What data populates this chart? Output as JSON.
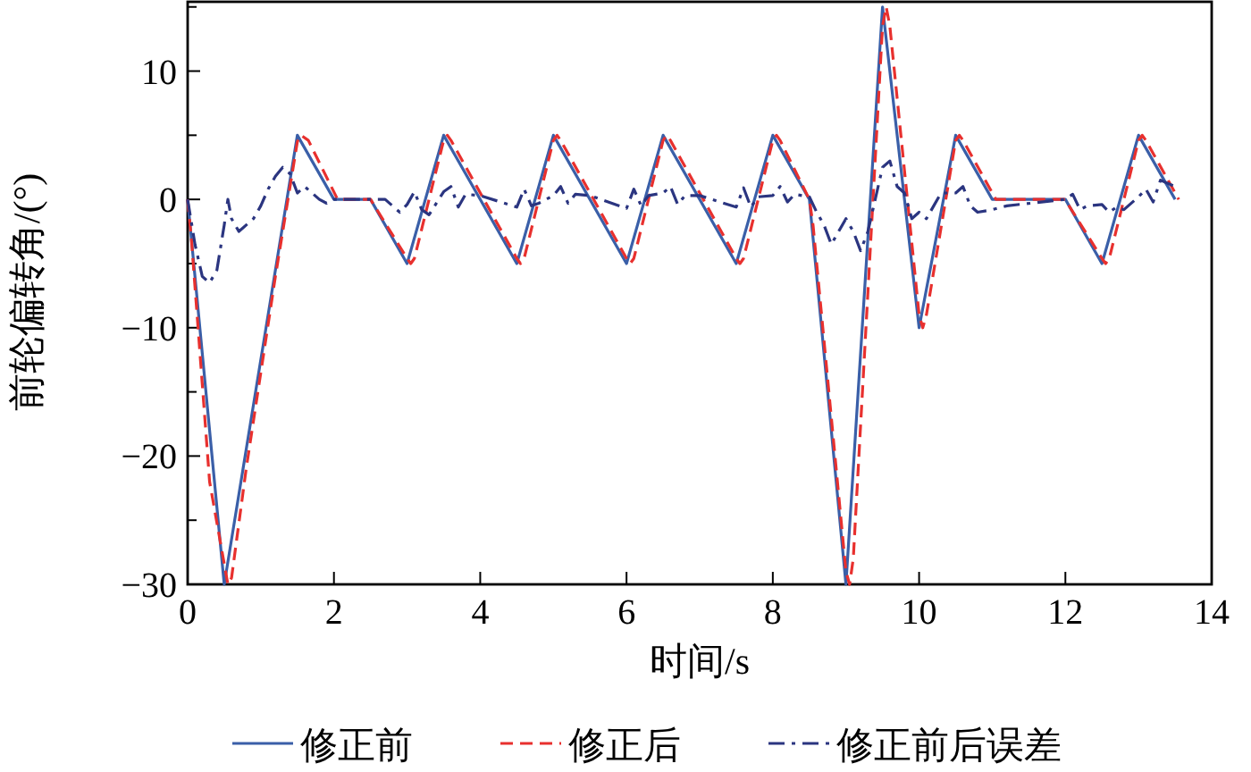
{
  "chart_data": {
    "type": "line",
    "xlabel": "时间/s",
    "ylabel": "前轮偏转角/(°)",
    "xlim": [
      0,
      14
    ],
    "xticks": [
      0,
      2,
      4,
      6,
      8,
      10,
      12,
      14
    ],
    "ylim": [
      -30,
      15.4
    ],
    "yticks": [
      {
        "value": -30,
        "label": "−30"
      },
      {
        "value": -25,
        "label": null
      },
      {
        "value": -20,
        "label": "−20"
      },
      {
        "value": -15,
        "label": null
      },
      {
        "value": -10,
        "label": "−10"
      },
      {
        "value": -5,
        "label": null
      },
      {
        "value": 0,
        "label": "0"
      },
      {
        "value": 5,
        "label": null
      },
      {
        "value": 10,
        "label": "10"
      },
      {
        "value": 15,
        "label": null
      }
    ],
    "grid": false,
    "legend": "bottom",
    "series": [
      {
        "name": "修正前",
        "color": "#3a5fa8",
        "line_style": "solid",
        "x": [
          0,
          0.5,
          1.5,
          2,
          2.5,
          3,
          3.5,
          4.5,
          5,
          6,
          6.5,
          7.5,
          8,
          8.5,
          9,
          9.5,
          10,
          10.5,
          11,
          12,
          12.5,
          13,
          13.5
        ],
        "values": [
          0,
          -30,
          5,
          0,
          0,
          -5,
          5,
          -5,
          5,
          -5,
          5,
          -5,
          5,
          0,
          -30,
          15,
          -10,
          5,
          0,
          0,
          -5,
          5,
          0
        ]
      },
      {
        "name": "修正后",
        "color": "#e8302e",
        "line_style": "dashed",
        "x": [
          0,
          0.05,
          0.3,
          0.55,
          0.6,
          0.8,
          1.2,
          1.5,
          1.55,
          1.65,
          2.05,
          2.5,
          3.0,
          3.05,
          3.1,
          3.5,
          3.55,
          3.6,
          4.5,
          4.55,
          4.6,
          5.0,
          5.05,
          5.1,
          6.0,
          6.05,
          6.1,
          6.5,
          6.55,
          6.6,
          7.5,
          7.55,
          7.6,
          8.0,
          8.05,
          8.1,
          8.5,
          8.55,
          9.0,
          9.05,
          9.1,
          9.5,
          9.55,
          9.6,
          10.0,
          10.05,
          10.1,
          10.5,
          10.55,
          10.6,
          11.05,
          12.0,
          12.05,
          12.5,
          12.55,
          12.6,
          13.0,
          13.05,
          13.1,
          13.55
        ],
        "values": [
          0,
          -3,
          -22,
          -30,
          -29.5,
          -21,
          -6,
          4.5,
          5,
          4.6,
          0,
          0,
          -4.6,
          -5,
          -4.6,
          4.6,
          5,
          4.6,
          -4.6,
          -5,
          -4.6,
          4.6,
          5,
          4.6,
          -4.6,
          -5,
          -4.6,
          4.6,
          5,
          4.6,
          -4.6,
          -5,
          -4.6,
          4.6,
          5,
          4.6,
          0,
          -2,
          -29,
          -30,
          -28,
          13.5,
          15,
          13.5,
          -9,
          -10,
          -9,
          4.6,
          5,
          4.6,
          0,
          0,
          -0.5,
          -4.6,
          -5,
          -4.6,
          4.6,
          5,
          4.6,
          0
        ]
      },
      {
        "name": "修正前后误差",
        "color": "#2b3580",
        "line_style": "dashdot",
        "x": [
          0,
          0.1,
          0.2,
          0.3,
          0.4,
          0.5,
          0.55,
          0.6,
          0.7,
          0.8,
          0.9,
          1.0,
          1.1,
          1.2,
          1.3,
          1.4,
          1.5,
          1.6,
          1.7,
          1.8,
          1.9,
          2.0,
          2.5,
          2.7,
          2.8,
          2.9,
          3.0,
          3.1,
          3.2,
          3.3,
          3.5,
          3.6,
          3.7,
          3.8,
          4.0,
          4.5,
          4.6,
          4.7,
          4.8,
          5.0,
          5.1,
          5.2,
          5.3,
          5.5,
          6.0,
          6.1,
          6.2,
          6.3,
          6.5,
          6.6,
          6.7,
          6.8,
          7.0,
          7.5,
          7.6,
          7.7,
          7.8,
          8.0,
          8.1,
          8.2,
          8.3,
          8.5,
          8.6,
          8.7,
          8.8,
          9.0,
          9.1,
          9.2,
          9.3,
          9.4,
          9.5,
          9.6,
          9.7,
          9.8,
          9.9,
          10.0,
          10.1,
          10.2,
          10.3,
          10.5,
          10.6,
          10.7,
          10.8,
          11.0,
          11.2,
          12.0,
          12.1,
          12.2,
          12.3,
          12.5,
          12.6,
          12.7,
          12.8,
          13.0,
          13.1,
          13.2,
          13.3,
          13.5
        ],
        "values": [
          0,
          -3.5,
          -6,
          -6.5,
          -5.5,
          -2,
          0,
          -1.5,
          -2.5,
          -2,
          -1.5,
          -0.5,
          0.8,
          1.8,
          2.5,
          2,
          0.5,
          1,
          0.5,
          0,
          -0.3,
          0,
          0,
          0,
          -0.5,
          -1,
          -0.4,
          0.6,
          -0.8,
          -1.2,
          0.6,
          1,
          -0.6,
          0.4,
          0.3,
          -0.6,
          0.8,
          -0.5,
          -0.3,
          0.3,
          1,
          -0.3,
          0.4,
          0.3,
          -0.7,
          0.8,
          -0.5,
          0.3,
          0.5,
          1,
          -0.4,
          0.3,
          0.3,
          -0.6,
          0.9,
          -0.6,
          0.2,
          0.3,
          1,
          -0.2,
          0.4,
          0.2,
          -1,
          -2,
          -3.5,
          -1.5,
          -2.5,
          -4,
          -2.5,
          0,
          2.5,
          3,
          1,
          0.5,
          -1.5,
          -1,
          -1.5,
          -0.5,
          0.5,
          0.5,
          1,
          -0.5,
          -1,
          -0.8,
          -0.5,
          0,
          0.4,
          -0.8,
          -0.5,
          -0.4,
          -1,
          -0.6,
          -0.8,
          0.2,
          0.8,
          -0.2,
          1.5,
          1
        ]
      }
    ]
  }
}
